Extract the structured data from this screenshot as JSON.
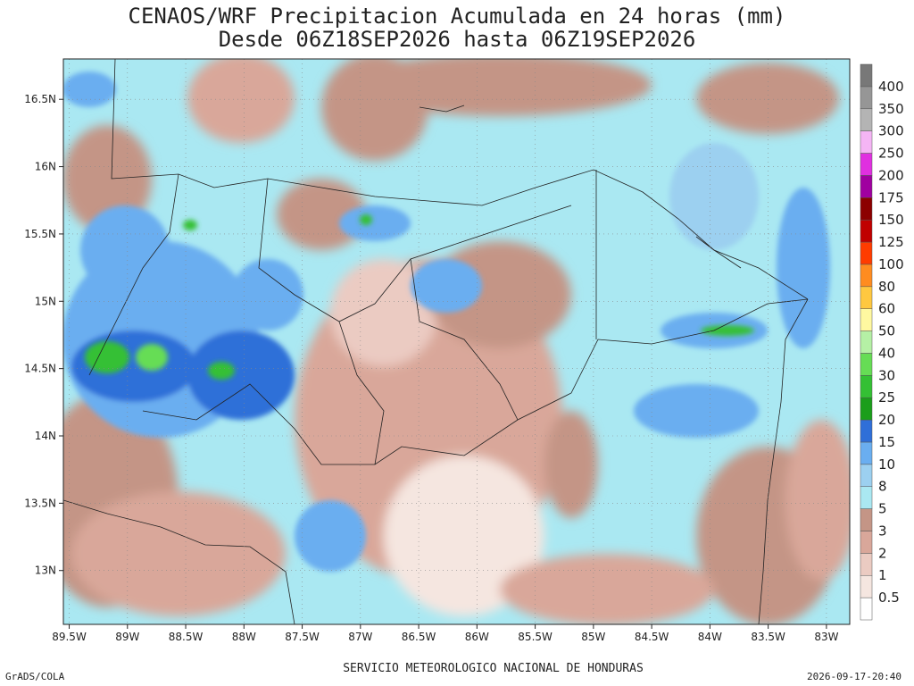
{
  "title": {
    "line1": "CENAOS/WRF Precipitacion Acumulada en 24 horas (mm)",
    "line2": "Desde 06Z18SEP2026 hasta 06Z19SEP2026"
  },
  "map": {
    "lon_range": [
      -89.55,
      -82.8
    ],
    "lat_range": [
      12.6,
      16.8
    ],
    "lon_ticks": [
      "89.5W",
      "89W",
      "88.5W",
      "88W",
      "87.5W",
      "87W",
      "86.5W",
      "86W",
      "85.5W",
      "85W",
      "84.5W",
      "84W",
      "83.5W",
      "83W"
    ],
    "lon_tick_values": [
      -89.5,
      -89,
      -88.5,
      -88,
      -87.5,
      -87,
      -86.5,
      -86,
      -85.5,
      -85,
      -84.5,
      -84,
      -83.5,
      -83
    ],
    "lat_ticks": [
      "13N",
      "13.5N",
      "14N",
      "14.5N",
      "15N",
      "15.5N",
      "16N",
      "16.5N"
    ],
    "lat_tick_values": [
      13,
      13.5,
      14,
      14.5,
      15,
      15.5,
      16,
      16.5
    ],
    "grid": true
  },
  "colorbar": {
    "levels": [
      "0.5",
      "1",
      "2",
      "3",
      "5",
      "8",
      "10",
      "15",
      "20",
      "25",
      "30",
      "40",
      "50",
      "60",
      "80",
      "100",
      "125",
      "150",
      "175",
      "200",
      "250",
      "300",
      "350",
      "400"
    ],
    "colors": [
      "#ffffff",
      "#f5e6e0",
      "#ebcbc2",
      "#d9a79a",
      "#c49586",
      "#aae8f2",
      "#9cd0f0",
      "#6aaef0",
      "#2f6fd8",
      "#1b9e1b",
      "#34c034",
      "#66dd55",
      "#b5f0a5",
      "#fff8a0",
      "#ffc840",
      "#ff8c20",
      "#ff3c00",
      "#c00000",
      "#8c0000",
      "#a000a0",
      "#e030e0",
      "#f5b5f5",
      "#b4b4b4",
      "#969696",
      "#787878"
    ]
  },
  "footer": {
    "left": "GrADS/COLA",
    "center": "SERVICIO METEOROLOGICO NACIONAL DE HONDURAS",
    "right": "2026-09-17-20:40"
  }
}
